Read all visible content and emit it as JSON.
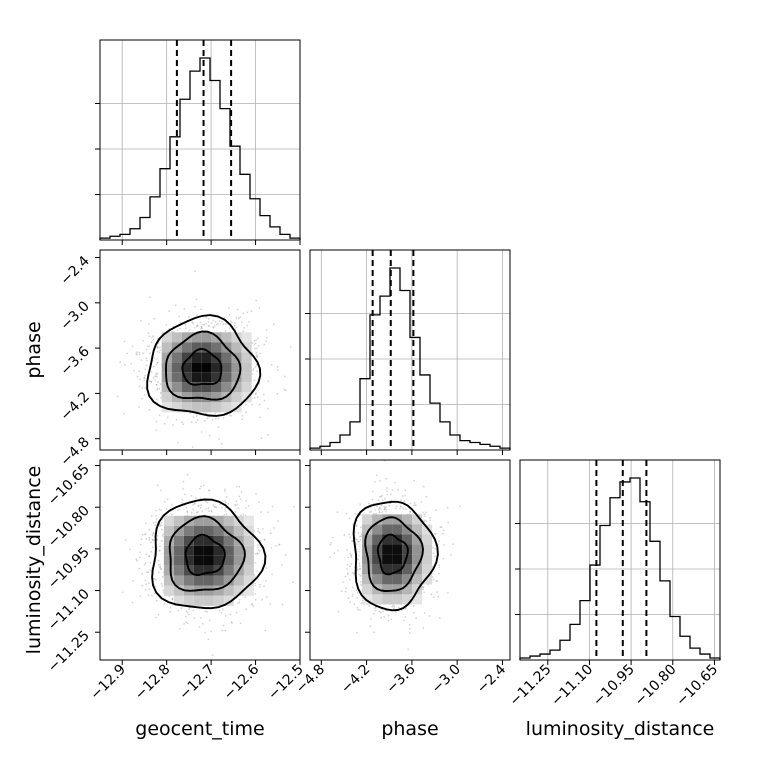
{
  "chart_data": {
    "type": "corner",
    "parameters": [
      {
        "name": "geocent_time",
        "xlabel": "geocent_time",
        "range": [
          -12.95,
          -12.5
        ],
        "ticks": [
          -12.9,
          -12.8,
          -12.7,
          -12.6,
          -12.5
        ],
        "tick_labels": [
          "−12.9",
          "−12.8",
          "−12.7",
          "−12.6",
          "−12.5"
        ],
        "quantiles": [
          -12.777,
          -12.717,
          -12.655
        ],
        "histogram": [
          1,
          2,
          3,
          6,
          12,
          23,
          38,
          55,
          75,
          90,
          97,
          85,
          70,
          50,
          35,
          22,
          13,
          7,
          3,
          1
        ]
      },
      {
        "name": "phase",
        "xlabel": "phase",
        "ylabel": "phase",
        "range": [
          -4.95,
          -2.3
        ],
        "ticks": [
          -4.8,
          -4.2,
          -3.6,
          -3.0,
          -2.4
        ],
        "tick_labels": [
          "−4.8",
          "−4.2",
          "−3.6",
          "−3.0",
          "−2.4"
        ],
        "quantiles": [
          -4.12,
          -3.88,
          -3.58
        ],
        "histogram": [
          1,
          2,
          4,
          8,
          15,
          38,
          72,
          82,
          97,
          85,
          60,
          40,
          25,
          15,
          8,
          5,
          4,
          3,
          2,
          1
        ]
      },
      {
        "name": "luminosity_distance",
        "xlabel": "luminosity_distance",
        "ylabel": "luminosity_distance",
        "range": [
          -11.35,
          -10.63
        ],
        "ticks": [
          -11.25,
          -11.1,
          -10.95,
          -10.8,
          -10.65
        ],
        "tick_labels": [
          "−11.25",
          "−11.10",
          "−10.95",
          "−10.80",
          "−10.65"
        ],
        "quantiles": [
          -11.075,
          -10.98,
          -10.895
        ],
        "histogram": [
          1,
          2,
          3,
          5,
          10,
          18,
          30,
          48,
          68,
          82,
          90,
          92,
          80,
          60,
          40,
          22,
          12,
          6,
          3,
          1
        ]
      }
    ],
    "scatter_2d": [
      {
        "x": "geocent_time",
        "y": "phase",
        "center": [
          -12.72,
          -3.87
        ],
        "spread": [
          0.057,
          0.3
        ]
      },
      {
        "x": "geocent_time",
        "y": "luminosity_distance",
        "center": [
          -12.715,
          -10.975
        ],
        "spread": [
          0.057,
          0.09
        ]
      },
      {
        "x": "phase",
        "y": "luminosity_distance",
        "center": [
          -3.86,
          -10.97
        ],
        "spread": [
          0.25,
          0.09
        ]
      }
    ],
    "contour_levels": [
      "inner",
      "middle",
      "outer"
    ],
    "quantile_style": "dashed",
    "grid": true
  }
}
